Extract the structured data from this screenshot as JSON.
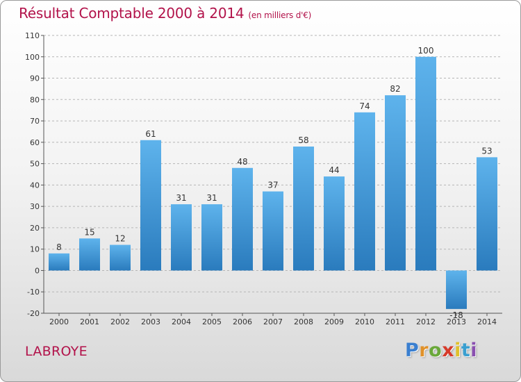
{
  "title": {
    "main": "Résultat Comptable 2000 à 2014",
    "unit": "(en milliers d'€)"
  },
  "commune": "LABROYE",
  "logo": {
    "letters": [
      "P",
      "r",
      "o",
      "x",
      "i",
      "t",
      "i"
    ],
    "colors": [
      "#3a7fd0",
      "#e0912a",
      "#6aa83a",
      "#d63a2a",
      "#e0c02a",
      "#3a9fd0",
      "#8a4fb0"
    ]
  },
  "colors": {
    "bar_top": "#5eb3ec",
    "bar_bottom": "#2a7bbd",
    "grid": "#b5b5b5",
    "text": "#333333",
    "title": "#b2124a"
  },
  "chart_data": {
    "type": "bar",
    "categories": [
      "2000",
      "2001",
      "2002",
      "2003",
      "2004",
      "2005",
      "2006",
      "2007",
      "2008",
      "2009",
      "2010",
      "2011",
      "2012",
      "2013",
      "2014"
    ],
    "values": [
      8,
      15,
      12,
      61,
      31,
      31,
      48,
      37,
      58,
      44,
      74,
      82,
      100,
      -18,
      53
    ],
    "ylim": [
      -20,
      110
    ],
    "yticks": [
      -20,
      -10,
      0,
      10,
      20,
      30,
      40,
      50,
      60,
      70,
      80,
      90,
      100,
      110
    ],
    "grid": true,
    "legend": "none"
  }
}
